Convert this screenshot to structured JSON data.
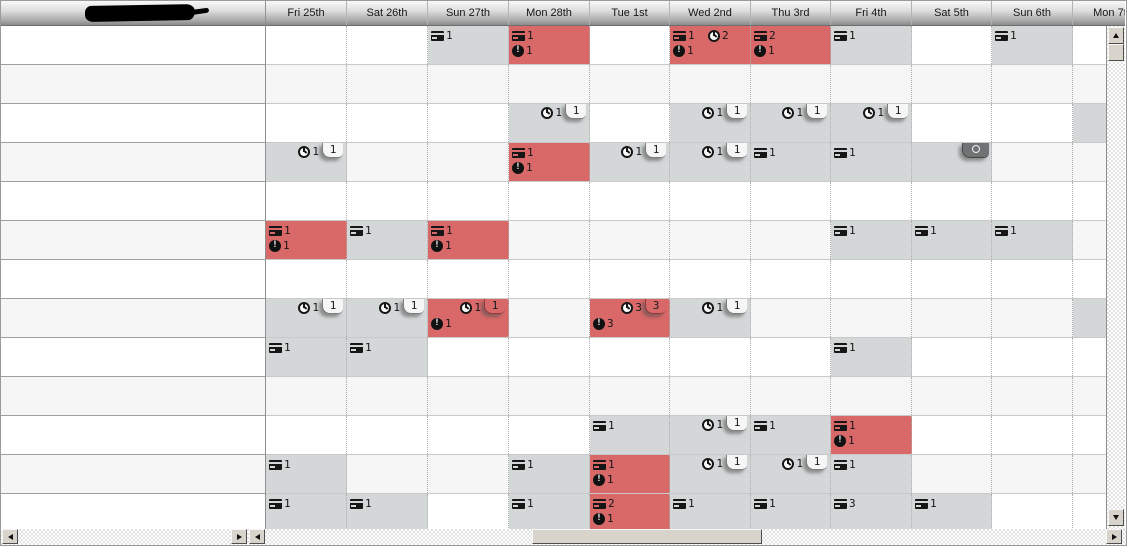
{
  "header": {
    "resource_column": {
      "redacted": true
    },
    "columns": [
      {
        "label": "Fri 25th"
      },
      {
        "label": "Sat 26th"
      },
      {
        "label": "Sun 27th"
      },
      {
        "label": "Mon 28th"
      },
      {
        "label": "Tue 1st"
      },
      {
        "label": "Wed 2nd"
      },
      {
        "label": "Thu 3rd"
      },
      {
        "label": "Fri 4th"
      },
      {
        "label": "Sat 5th"
      },
      {
        "label": "Sun 6th"
      },
      {
        "label": "Mon 7th",
        "partially_visible": true
      }
    ]
  },
  "icons": {
    "card": "booking-card-icon",
    "clock": "clock-icon",
    "warn": "alert-exclamation-icon",
    "circle_badge": "circle-option-badge-icon",
    "scroll": [
      "up-arrow-icon",
      "down-arrow-icon",
      "left-arrow-icon",
      "right-arrow-icon"
    ]
  },
  "colors": {
    "occupied_cell": "#d3d7d7",
    "alert_cell": "#d96868",
    "alt_row": "#f6f6f6",
    "badge_light": "#f6f6f6",
    "badge_dark": "#6f7374"
  },
  "grid": {
    "rows": [
      {
        "cells": [
          {
            "col": 2,
            "card": "1"
          },
          {
            "col": 3,
            "red": true,
            "card": "1",
            "warn": "1"
          },
          {
            "col": 5,
            "red": true,
            "card": "1",
            "clock": "2",
            "warn": "1"
          },
          {
            "col": 6,
            "red": true,
            "card": "2",
            "warn": "1"
          },
          {
            "col": 7,
            "card": "1"
          },
          {
            "col": 9,
            "card": "1"
          }
        ]
      },
      {
        "cells": []
      },
      {
        "cells": [
          {
            "col": 3,
            "clock": "1",
            "tab": "1"
          },
          {
            "col": 5,
            "clock": "1",
            "tab": "1"
          },
          {
            "col": 6,
            "clock": "1",
            "tab": "1"
          },
          {
            "col": 7,
            "clock": "1",
            "tab": "1"
          },
          {
            "col": 10,
            "blank": true
          }
        ]
      },
      {
        "cells": [
          {
            "col": 0,
            "clock": "1",
            "tab": "1"
          },
          {
            "col": 3,
            "red": true,
            "card": "1",
            "warn": "1"
          },
          {
            "col": 4,
            "clock": "1",
            "tab": "1"
          },
          {
            "col": 5,
            "clock": "1",
            "tab": "1"
          },
          {
            "col": 6,
            "card": "1"
          },
          {
            "col": 7,
            "card": "1"
          },
          {
            "col": 8,
            "badge": "circle"
          }
        ]
      },
      {
        "cells": []
      },
      {
        "cells": [
          {
            "col": 0,
            "red": true,
            "card": "1",
            "warn": "1"
          },
          {
            "col": 1,
            "card": "1"
          },
          {
            "col": 2,
            "red": true,
            "card": "1",
            "warn": "1"
          },
          {
            "col": 7,
            "card": "1"
          },
          {
            "col": 8,
            "card": "1"
          },
          {
            "col": 9,
            "card": "1"
          }
        ]
      },
      {
        "cells": []
      },
      {
        "cells": [
          {
            "col": 0,
            "clock": "1",
            "tab": "1"
          },
          {
            "col": 1,
            "clock": "1",
            "tab": "1"
          },
          {
            "col": 2,
            "red": true,
            "clock": "1",
            "tab": "1",
            "warn": "1"
          },
          {
            "col": 4,
            "red": true,
            "clock": "3",
            "tab": "3",
            "warn": "3"
          },
          {
            "col": 5,
            "clock": "1",
            "tab": "1"
          },
          {
            "col": 10,
            "blank": true
          }
        ]
      },
      {
        "cells": [
          {
            "col": 0,
            "card": "1"
          },
          {
            "col": 1,
            "card": "1"
          },
          {
            "col": 7,
            "card": "1"
          }
        ]
      },
      {
        "cells": []
      },
      {
        "cells": [
          {
            "col": 4,
            "card": "1"
          },
          {
            "col": 5,
            "clock": "1",
            "tab": "1"
          },
          {
            "col": 6,
            "card": "1"
          },
          {
            "col": 7,
            "red": true,
            "card": "1",
            "warn": "1"
          }
        ]
      },
      {
        "cells": [
          {
            "col": 0,
            "card": "1"
          },
          {
            "col": 3,
            "card": "1"
          },
          {
            "col": 4,
            "red": true,
            "card": "1",
            "warn": "1"
          },
          {
            "col": 5,
            "clock": "1",
            "tab": "1"
          },
          {
            "col": 6,
            "clock": "1",
            "tab": "1"
          },
          {
            "col": 7,
            "card": "1"
          }
        ]
      },
      {
        "cells": [
          {
            "col": 0,
            "card": "1"
          },
          {
            "col": 1,
            "card": "1"
          },
          {
            "col": 3,
            "card": "1"
          },
          {
            "col": 4,
            "red": true,
            "card": "2",
            "warn": "1"
          },
          {
            "col": 5,
            "card": "1"
          },
          {
            "col": 6,
            "card": "1"
          },
          {
            "col": 7,
            "card": "3"
          },
          {
            "col": 8,
            "card": "1"
          }
        ]
      }
    ]
  }
}
